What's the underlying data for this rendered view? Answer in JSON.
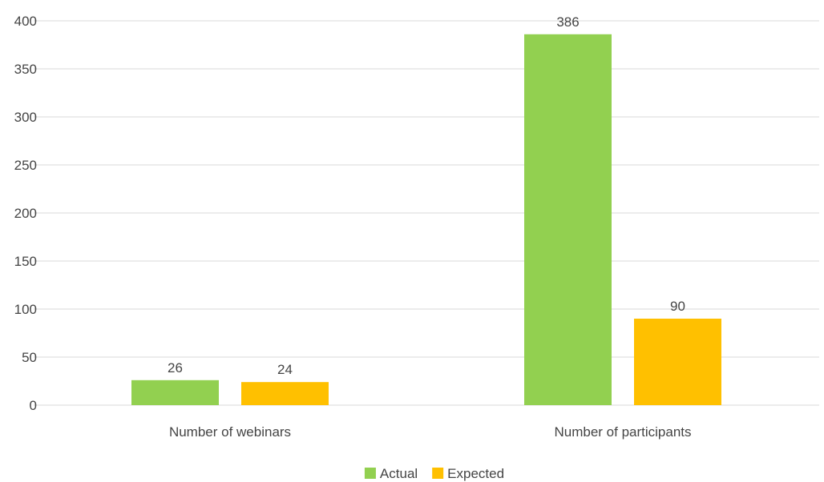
{
  "chart_data": {
    "type": "bar",
    "title": "",
    "xlabel": "",
    "ylabel": "",
    "categories": [
      "Number of webinars",
      "Number of participants"
    ],
    "series": [
      {
        "name": "Actual",
        "values": [
          26,
          386
        ],
        "color": "#92d050"
      },
      {
        "name": "Expected",
        "values": [
          24,
          90
        ],
        "color": "#ffc000"
      }
    ],
    "ylim": [
      0,
      400
    ],
    "yticks": [
      0,
      50,
      100,
      150,
      200,
      250,
      300,
      350,
      400
    ],
    "grid": true,
    "data_labels": true,
    "legend_position": "bottom"
  }
}
